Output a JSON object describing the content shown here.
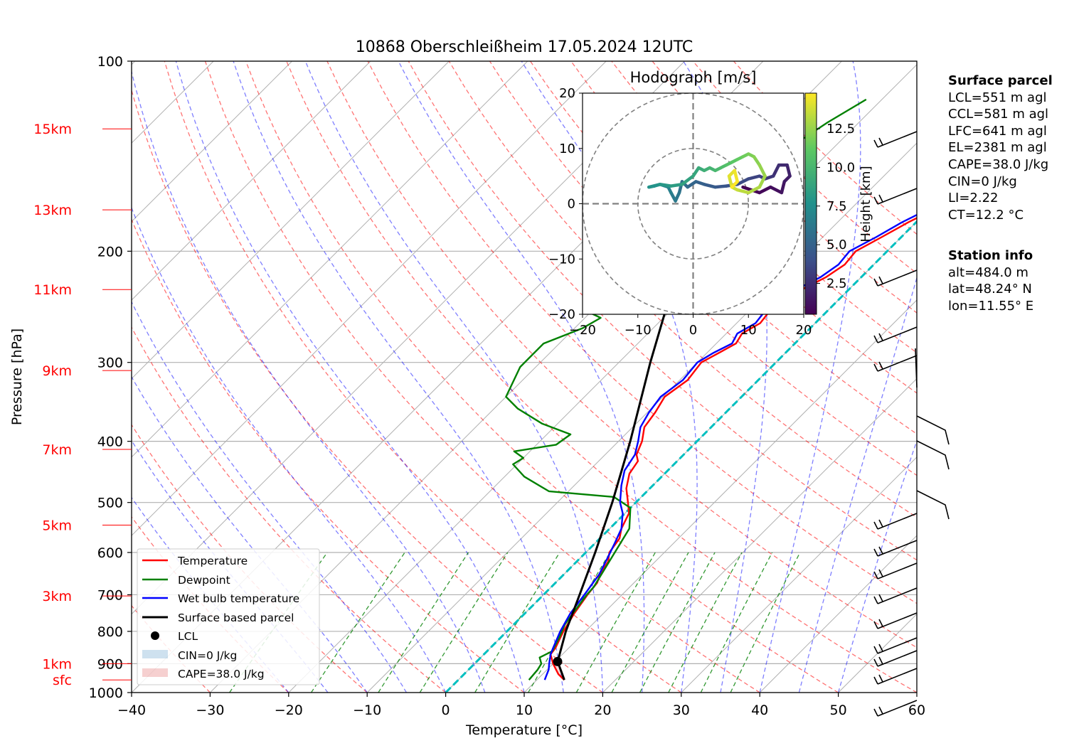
{
  "chart_data": {
    "type": "line",
    "title": "10868 Oberschleißheim 17.05.2024 12UTC",
    "xlabel": "Temperature [°C]",
    "ylabel": "Pressure [hPa]",
    "xlim": [
      -40,
      60
    ],
    "ylim": [
      1000,
      100
    ],
    "y_scale": "log",
    "grid": true,
    "x_ticks": [
      "−40",
      "−30",
      "−20",
      "−10",
      "0",
      "10",
      "20",
      "30",
      "40",
      "50",
      "60"
    ],
    "y_ticks": [
      "100",
      "200",
      "300",
      "400",
      "500",
      "600",
      "700",
      "800",
      "900",
      "1000"
    ],
    "height_labels": [
      {
        "text": "sfc",
        "p": 955
      },
      {
        "text": "1km",
        "p": 900
      },
      {
        "text": "3km",
        "p": 703
      },
      {
        "text": "5km",
        "p": 543
      },
      {
        "text": "7km",
        "p": 412
      },
      {
        "text": "9km",
        "p": 309
      },
      {
        "text": "11km",
        "p": 230
      },
      {
        "text": "13km",
        "p": 172
      },
      {
        "text": "15km",
        "p": 128
      }
    ],
    "series": [
      {
        "name": "Temperature",
        "color": "#ff0000",
        "points": [
          [
            13.5,
            955
          ],
          [
            12,
            935
          ],
          [
            10,
            900
          ],
          [
            8.5,
            870
          ],
          [
            8.3,
            850
          ],
          [
            7.2,
            800
          ],
          [
            6.3,
            750
          ],
          [
            5.6,
            700
          ],
          [
            5.3,
            670
          ],
          [
            4.6,
            650
          ],
          [
            4,
            620
          ],
          [
            3,
            600
          ],
          [
            2.5,
            570
          ],
          [
            1.5,
            550
          ],
          [
            0.5,
            520
          ],
          [
            -1,
            500
          ],
          [
            -3,
            475
          ],
          [
            -4.5,
            450
          ],
          [
            -5,
            430
          ],
          [
            -6,
            420
          ],
          [
            -7,
            400
          ],
          [
            -8.5,
            380
          ],
          [
            -9,
            360
          ],
          [
            -9.8,
            340
          ],
          [
            -9,
            320
          ],
          [
            -9.5,
            300
          ],
          [
            -8.5,
            290
          ],
          [
            -7.5,
            280
          ],
          [
            -8,
            270
          ],
          [
            -7,
            260
          ],
          [
            -7.3,
            250
          ],
          [
            -6.5,
            240
          ],
          [
            -6,
            230
          ],
          [
            -4.5,
            220
          ],
          [
            -3.7,
            210
          ],
          [
            -4,
            200
          ],
          [
            -2.5,
            190
          ],
          [
            -1,
            180
          ],
          [
            1,
            170
          ],
          [
            2,
            165
          ],
          [
            2.5,
            160
          ],
          [
            3.5,
            150
          ],
          [
            4,
            145
          ],
          [
            6,
            135
          ],
          [
            7.2,
            125
          ],
          [
            8.5,
            115
          ],
          [
            9.7,
            110
          ]
        ]
      },
      {
        "name": "Dewpoint",
        "color": "#008000",
        "points": [
          [
            9,
            955
          ],
          [
            8.8,
            920
          ],
          [
            8.5,
            900
          ],
          [
            7.5,
            880
          ],
          [
            8.3,
            860
          ],
          [
            7.5,
            820
          ],
          [
            6.5,
            780
          ],
          [
            6,
            740
          ],
          [
            5.5,
            700
          ],
          [
            5.4,
            680
          ],
          [
            2.5,
            550
          ],
          [
            0,
            510
          ],
          [
            -3.5,
            490
          ],
          [
            -12.5,
            480
          ],
          [
            -17.5,
            455
          ],
          [
            -20.5,
            435
          ],
          [
            -20,
            425
          ],
          [
            -22,
            415
          ],
          [
            -17.5,
            405
          ],
          [
            -17,
            390
          ],
          [
            -22,
            375
          ],
          [
            -27,
            355
          ],
          [
            -30,
            340
          ],
          [
            -32,
            305
          ],
          [
            -32,
            280
          ],
          [
            -29,
            265
          ],
          [
            -28,
            255
          ],
          [
            -31,
            248
          ],
          [
            -32.5,
            238
          ],
          [
            -33,
            228
          ],
          [
            -33.5,
            220
          ],
          [
            -32,
            215
          ],
          [
            -34,
            211
          ],
          [
            -34.8,
            200
          ],
          [
            -34,
            190
          ],
          [
            -32,
            178
          ],
          [
            -30,
            166
          ],
          [
            -28,
            155
          ],
          [
            -26,
            140
          ],
          [
            -24,
            125
          ],
          [
            -22,
            115
          ]
        ]
      },
      {
        "name": "Wet bulb temperature",
        "color": "#0000ff",
        "points": [
          [
            11,
            955
          ],
          [
            10.2,
            920
          ],
          [
            9.5,
            900
          ],
          [
            8.5,
            870
          ],
          [
            8,
            850
          ],
          [
            6.8,
            800
          ],
          [
            5.8,
            750
          ],
          [
            5.2,
            700
          ],
          [
            4.5,
            650
          ],
          [
            3.4,
            610
          ],
          [
            2.5,
            580
          ],
          [
            1.5,
            550
          ],
          [
            -0.3,
            520
          ],
          [
            -2,
            500
          ],
          [
            -4,
            470
          ],
          [
            -5.5,
            445
          ],
          [
            -6.2,
            420
          ],
          [
            -7.5,
            400
          ],
          [
            -9,
            380
          ],
          [
            -9.8,
            360
          ],
          [
            -10.3,
            340
          ],
          [
            -9.6,
            320
          ],
          [
            -10,
            300
          ],
          [
            -9.2,
            290
          ],
          [
            -8,
            280
          ],
          [
            -8.6,
            270
          ],
          [
            -7.6,
            260
          ],
          [
            -7.9,
            250
          ],
          [
            -7.2,
            240
          ],
          [
            -6.7,
            230
          ],
          [
            -5.2,
            220
          ],
          [
            -4.5,
            210
          ],
          [
            -4.8,
            200
          ],
          [
            -3.2,
            190
          ],
          [
            -1.8,
            180
          ],
          [
            0.2,
            170
          ],
          [
            1.2,
            165
          ],
          [
            1.6,
            160
          ],
          [
            2.8,
            150
          ],
          [
            3.3,
            145
          ],
          [
            5.4,
            135
          ],
          [
            6.6,
            125
          ],
          [
            7.9,
            115
          ],
          [
            9,
            110
          ]
        ]
      },
      {
        "name": "Surface based parcel",
        "color": "#000000",
        "points": [
          [
            13.5,
            955
          ],
          [
            10.3,
            893
          ],
          [
            7.5,
            800
          ],
          [
            4.6,
            700
          ],
          [
            1.2,
            600
          ],
          [
            -3,
            500
          ],
          [
            -8.5,
            400
          ],
          [
            -16,
            300
          ],
          [
            -26,
            200
          ],
          [
            -30,
            175
          ],
          [
            -35,
            150
          ],
          [
            -40,
            127
          ]
        ]
      },
      {
        "name": "LCL",
        "color": "#000000",
        "marker": "point",
        "points": [
          [
            10.3,
            893
          ]
        ]
      }
    ],
    "legend": {
      "position": "bottom-left",
      "entries": [
        "Temperature",
        "Dewpoint",
        "Wet bulb temperature",
        "Surface based parcel",
        "LCL",
        "CIN=0 J/kg",
        "CAPE=38.0 J/kg"
      ]
    },
    "wind_barbs_column": "right",
    "hodograph": {
      "title": "Hodograph [m/s]",
      "xlim": [
        -20,
        20
      ],
      "ylim": [
        -20,
        20
      ],
      "ticks": [
        "−20",
        "−10",
        "0",
        "10",
        "20"
      ],
      "colorbar_label": "Height [km]",
      "colorbar_ticks": [
        "2.5",
        "5.0",
        "7.5",
        "10.0",
        "12.5"
      ],
      "colorbar_range": [
        0.5,
        14.8
      ],
      "path": [
        [
          9,
          3
        ],
        [
          12,
          2
        ],
        [
          14,
          3
        ],
        [
          16,
          2
        ],
        [
          16.5,
          4
        ],
        [
          17.5,
          5
        ],
        [
          17,
          7
        ],
        [
          15.5,
          7
        ],
        [
          14.5,
          5
        ],
        [
          13,
          4.5
        ],
        [
          12,
          5
        ],
        [
          10,
          4.5
        ],
        [
          8,
          3.5
        ],
        [
          6,
          3.2
        ],
        [
          4,
          3
        ],
        [
          2,
          3.5
        ],
        [
          0.5,
          4
        ],
        [
          -1,
          3
        ],
        [
          -2,
          4
        ],
        [
          -2.5,
          2
        ],
        [
          -3.2,
          0.5
        ],
        [
          -4,
          2
        ],
        [
          -4.5,
          3
        ],
        [
          -6,
          3.5
        ],
        [
          -7,
          3.2
        ],
        [
          -8,
          3
        ],
        [
          -6,
          3.5
        ],
        [
          -4,
          3.2
        ],
        [
          -2,
          3.5
        ],
        [
          0,
          5
        ],
        [
          1,
          6.5
        ],
        [
          2,
          6
        ],
        [
          3,
          6.5
        ],
        [
          4,
          6
        ],
        [
          5,
          6.5
        ],
        [
          6,
          7
        ],
        [
          7,
          7.5
        ],
        [
          8,
          8
        ],
        [
          9,
          8.5
        ],
        [
          10,
          9
        ],
        [
          11,
          8.5
        ],
        [
          12,
          7
        ],
        [
          13,
          5
        ],
        [
          12,
          3
        ],
        [
          10,
          2
        ],
        [
          8,
          2.5
        ],
        [
          7,
          3
        ],
        [
          6.5,
          5
        ],
        [
          7.5,
          6
        ],
        [
          8,
          4
        ],
        [
          7,
          3
        ]
      ]
    }
  },
  "surface_parcel": {
    "heading": "Surface parcel",
    "lines": [
      "LCL=551 m agl",
      "CCL=581 m agl",
      "LFC=641 m agl",
      "EL=2381 m agl",
      "CAPE=38.0 J/kg",
      "CIN=0 J/kg",
      "LI=2.22",
      "CT=12.2 °C"
    ]
  },
  "station_info": {
    "heading": "Station info",
    "lines": [
      "alt=484.0 m",
      "lat=48.24° N",
      "lon=11.55° E"
    ]
  }
}
